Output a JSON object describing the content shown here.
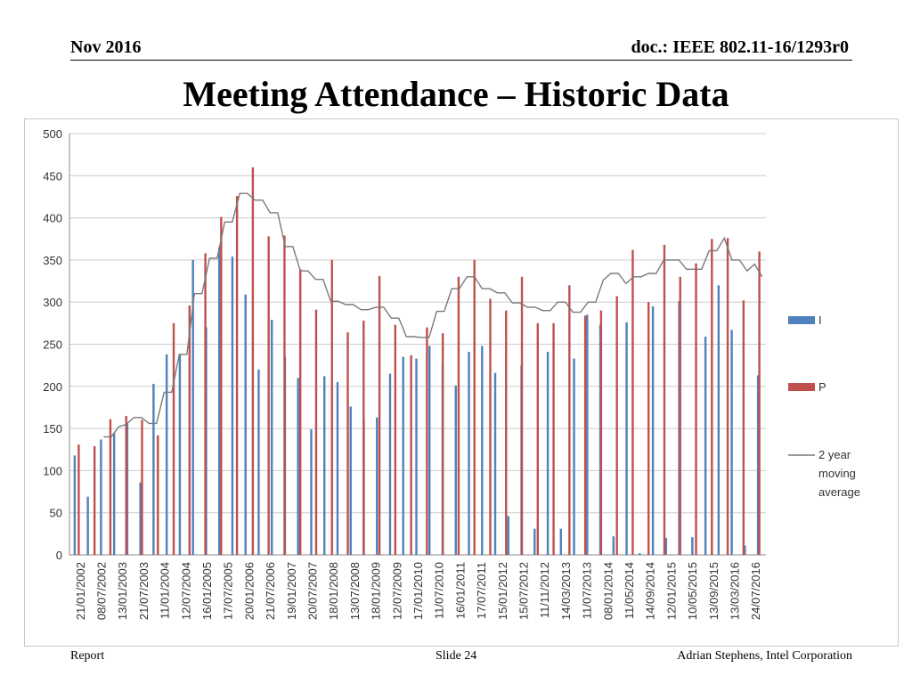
{
  "header": {
    "left": "Nov 2016",
    "right": "doc.: IEEE 802.11-16/1293r0"
  },
  "title": "Meeting Attendance – Historic Data",
  "footer": {
    "left": "Report",
    "middle": "Slide 24",
    "right": "Adrian Stephens, Intel Corporation"
  },
  "chart_data": {
    "type": "bar",
    "ylim": [
      0,
      500
    ],
    "yticks": [
      0,
      50,
      100,
      150,
      200,
      250,
      300,
      350,
      400,
      450,
      500
    ],
    "grid": true,
    "legend_position": "right",
    "tick_labels": [
      "21/01/2002",
      "08/07/2002",
      "13/01/2003",
      "21/07/2003",
      "11/01/2004",
      "12/07/2004",
      "16/01/2005",
      "17/07/2005",
      "20/01/2006",
      "21/07/2006",
      "19/01/2007",
      "20/07/2007",
      "18/01/2008",
      "13/07/2008",
      "18/01/2009",
      "12/07/2009",
      "17/01/2010",
      "11/07/2010",
      "16/01/2011",
      "17/07/2011",
      "15/01/2012",
      "15/07/2012",
      "11/11/2012",
      "14/03/2013",
      "11/07/2013",
      "08/01/2014",
      "11/05/2014",
      "14/09/2014",
      "12/01/2015",
      "10/05/2015",
      "13/09/2015",
      "13/03/2016",
      "24/07/2016"
    ],
    "series": [
      {
        "name": "I",
        "kind": "bar",
        "color": "#4f81bd",
        "values": [
          118,
          69,
          137,
          145,
          156,
          86,
          203,
          238,
          238,
          350,
          270,
          365,
          354,
          309,
          220,
          279,
          235,
          210,
          149,
          212,
          205,
          176,
          159,
          163,
          215,
          235,
          233,
          248,
          227,
          201,
          241,
          248,
          216,
          46,
          225,
          31,
          241,
          31,
          233,
          285,
          273,
          22,
          276,
          2,
          295,
          20,
          301,
          21,
          259,
          320,
          267,
          11,
          213
        ]
      },
      {
        "name": "P",
        "kind": "bar",
        "color": "#c0504d",
        "values": [
          131,
          129,
          161,
          165,
          160,
          142,
          275,
          296,
          358,
          401,
          426,
          460,
          378,
          379,
          339,
          291,
          350,
          264,
          278,
          331,
          273,
          237,
          270,
          263,
          330,
          350,
          304,
          290,
          330,
          275,
          275,
          320,
          284,
          290,
          307,
          362,
          300,
          368,
          330,
          346,
          375,
          376,
          302,
          360
        ]
      },
      {
        "name": "2 year moving average",
        "kind": "line",
        "color": "#7a7a7a",
        "values": [
          null,
          null,
          null,
          null,
          140,
          140,
          152,
          155,
          163,
          163,
          156,
          156,
          193,
          193,
          238,
          238,
          310,
          310,
          352,
          352,
          395,
          395,
          429,
          429,
          421,
          421,
          406,
          406,
          366,
          366,
          337,
          337,
          327,
          327,
          301,
          301,
          297,
          297,
          291,
          291,
          294,
          294,
          281,
          281,
          259,
          259,
          258,
          258,
          289,
          289,
          316,
          316,
          330,
          330,
          316,
          316,
          311,
          311,
          299,
          299,
          294,
          294,
          290,
          290,
          300,
          300,
          288,
          288,
          300,
          300,
          326,
          334,
          334,
          322,
          330,
          330,
          334,
          334,
          350,
          350,
          350,
          339,
          339,
          339,
          361,
          361,
          376,
          350,
          350,
          337,
          345,
          330
        ]
      }
    ]
  },
  "colors": {
    "grid": "#cccccc",
    "axis": "#888888",
    "text": "#333333"
  }
}
